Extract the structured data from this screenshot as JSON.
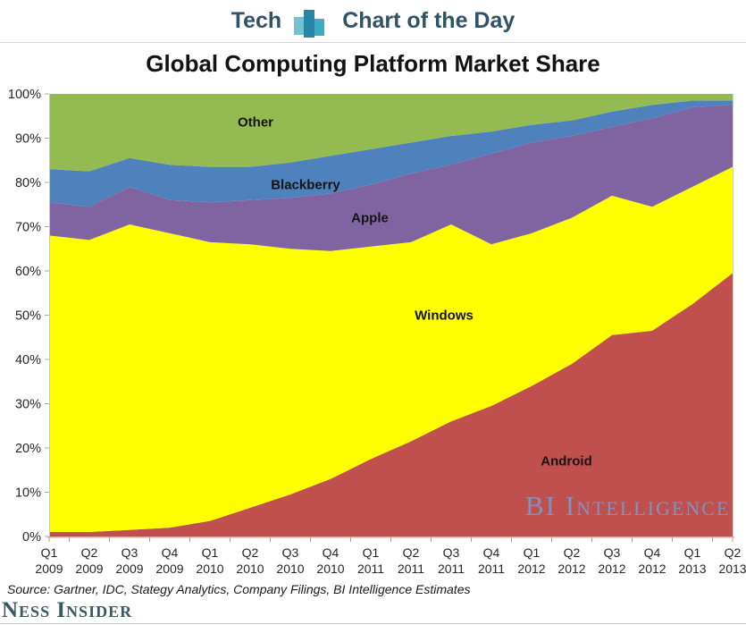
{
  "header": {
    "brand_prefix": "Tech",
    "brand_suffix": "Chart of the Day",
    "icon": "bar-chart-icon",
    "icon_colors": [
      "#64becb",
      "#1b7fa3",
      "#2fa5b9"
    ],
    "text_color": "#2e5365"
  },
  "title": "Global Computing Platform Market Share",
  "chart_data": {
    "type": "area",
    "stacked": true,
    "title": "Global Computing Platform Market Share",
    "xlabel": "",
    "ylabel": "",
    "ylim": [
      0,
      100
    ],
    "grid": false,
    "legend_position": "inline-labels",
    "y_tick_labels": [
      "0%",
      "10%",
      "20%",
      "30%",
      "40%",
      "50%",
      "60%",
      "70%",
      "80%",
      "90%",
      "100%"
    ],
    "categories": [
      {
        "q": "Q1",
        "year": "2009"
      },
      {
        "q": "Q2",
        "year": "2009"
      },
      {
        "q": "Q3",
        "year": "2009"
      },
      {
        "q": "Q4",
        "year": "2009"
      },
      {
        "q": "Q1",
        "year": "2010"
      },
      {
        "q": "Q2",
        "year": "2010"
      },
      {
        "q": "Q3",
        "year": "2010"
      },
      {
        "q": "Q4",
        "year": "2010"
      },
      {
        "q": "Q1",
        "year": "2011"
      },
      {
        "q": "Q2",
        "year": "2011"
      },
      {
        "q": "Q3",
        "year": "2011"
      },
      {
        "q": "Q4",
        "year": "2011"
      },
      {
        "q": "Q1",
        "year": "2012"
      },
      {
        "q": "Q2",
        "year": "2012"
      },
      {
        "q": "Q3",
        "year": "2012"
      },
      {
        "q": "Q4",
        "year": "2012"
      },
      {
        "q": "Q1",
        "year": "2013"
      },
      {
        "q": "Q2",
        "year": "2013"
      }
    ],
    "series": [
      {
        "name": "Android",
        "color": "#c0504d",
        "values": [
          1,
          1,
          1.5,
          2,
          3.5,
          6.5,
          9.5,
          13,
          17.5,
          21.5,
          26,
          29.5,
          34,
          39,
          45.5,
          46.5,
          52.5,
          59.5
        ]
      },
      {
        "name": "Windows",
        "color": "#ffff00",
        "values": [
          67,
          66,
          69,
          66.5,
          63,
          59.5,
          55.5,
          51.5,
          48,
          45,
          44.5,
          36.5,
          34.5,
          33,
          31.5,
          28,
          26.5,
          24
        ]
      },
      {
        "name": "Apple",
        "color": "#8064a2",
        "values": [
          7.5,
          7.5,
          8.5,
          7.5,
          9,
          10,
          11.5,
          13,
          14,
          15.5,
          13.5,
          20.5,
          20.5,
          18.5,
          15.5,
          20,
          18,
          14
        ]
      },
      {
        "name": "Blackberry",
        "color": "#4f81bd",
        "values": [
          7.5,
          8,
          6.5,
          8,
          8,
          7.5,
          8,
          8.5,
          8,
          7,
          6.5,
          5,
          4,
          3.5,
          3.5,
          3,
          1.5,
          1
        ]
      },
      {
        "name": "Other",
        "color": "#94bb51",
        "values": [
          17,
          17.5,
          14.5,
          16,
          16.5,
          16.5,
          15.5,
          14,
          12.5,
          11,
          9.5,
          8.5,
          7,
          6,
          4,
          2.5,
          1.5,
          1.5
        ]
      }
    ],
    "x_axis_color": "#dba5a2",
    "tick_label_color": "#262626"
  },
  "watermark": "BI Intelligence",
  "source_note": "Source: Gartner, IDC, Stategy Analytics, Company Filings, BI Intelligence Estimates",
  "footer": {
    "brand": "Ness Insider"
  }
}
